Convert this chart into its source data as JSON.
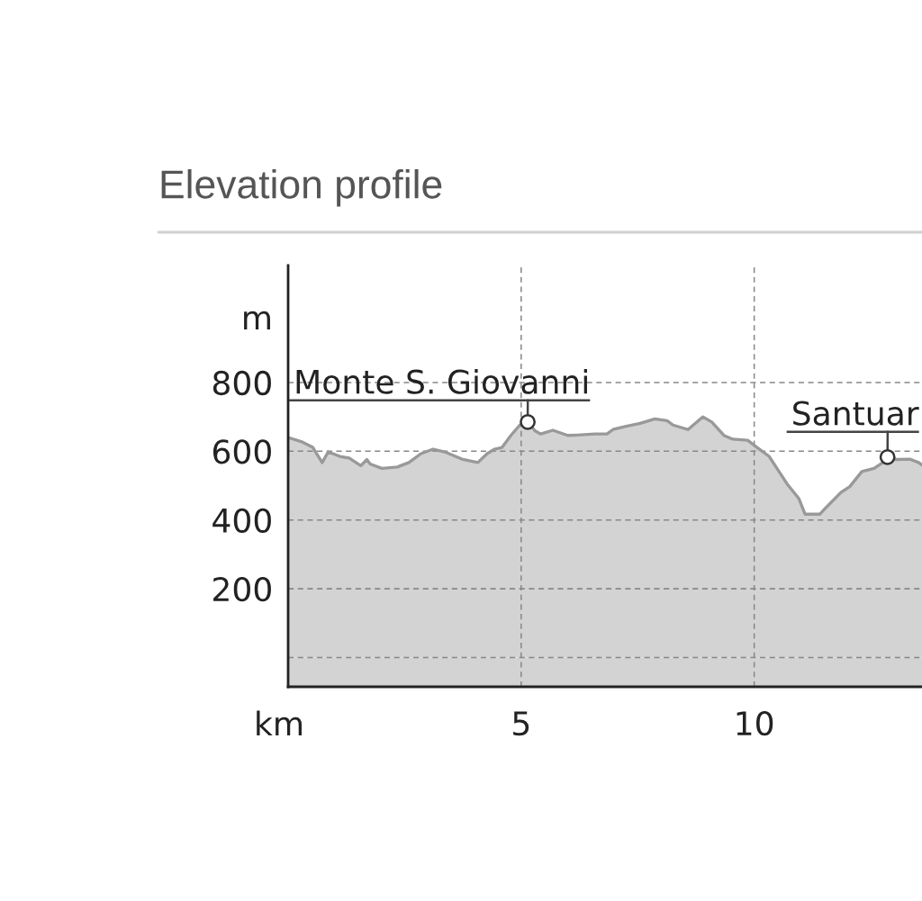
{
  "chart_data": {
    "type": "area",
    "title": "Elevation profile",
    "xlabel": "km",
    "ylabel": "m",
    "x": [
      0,
      0.28,
      0.53,
      0.73,
      0.86,
      1.11,
      1.31,
      1.56,
      1.69,
      1.76,
      2.01,
      2.34,
      2.59,
      2.85,
      3.11,
      3.36,
      3.75,
      4.07,
      4.27,
      4.43,
      4.59,
      4.78,
      4.97,
      5.14,
      5.3,
      5.42,
      5.68,
      6.0,
      6.2,
      6.58,
      6.84,
      6.97,
      7.23,
      7.55,
      7.87,
      8.13,
      8.26,
      8.58,
      8.9,
      9.09,
      9.35,
      9.54,
      9.86,
      10.06,
      10.32,
      10.7,
      10.96,
      11.09,
      11.41,
      11.54,
      11.86,
      12.05,
      12.31,
      12.57,
      12.76,
      12.86,
      13.02,
      13.34,
      13.53,
      13.6
    ],
    "series": [
      {
        "color": "#d3d3d3",
        "values": [
          640,
          628,
          611,
          567,
          598,
          585,
          580,
          558,
          576,
          563,
          550,
          554,
          567,
          593,
          606,
          598,
          576,
          567,
          593,
          606,
          611,
          646,
          676,
          685,
          659,
          650,
          661,
          646,
          647,
          650,
          650,
          663,
          672,
          681,
          694,
          689,
          676,
          663,
          700,
          685,
          646,
          635,
          632,
          611,
          585,
          506,
          462,
          417,
          417,
          436,
          480,
          497,
          541,
          550,
          567,
          583,
          576,
          577,
          567,
          560
        ]
      }
    ],
    "xlim": [
      0,
      13.6
    ],
    "ylim": [
      -85,
      1140
    ],
    "xticks": [
      5,
      10
    ],
    "yticks": [
      {
        "value": 0,
        "label": null
      },
      200,
      400,
      600,
      800
    ],
    "grid": true,
    "bands": [
      {
        "axis": "y",
        "from": -85,
        "to": 0,
        "color": "#d3d3d3"
      }
    ],
    "annotations": [
      {
        "text": "Monte S. Giovanni",
        "x": 5.14,
        "y": 685
      },
      {
        "text": "Santuar",
        "x": 12.86,
        "y": 583
      }
    ]
  }
}
